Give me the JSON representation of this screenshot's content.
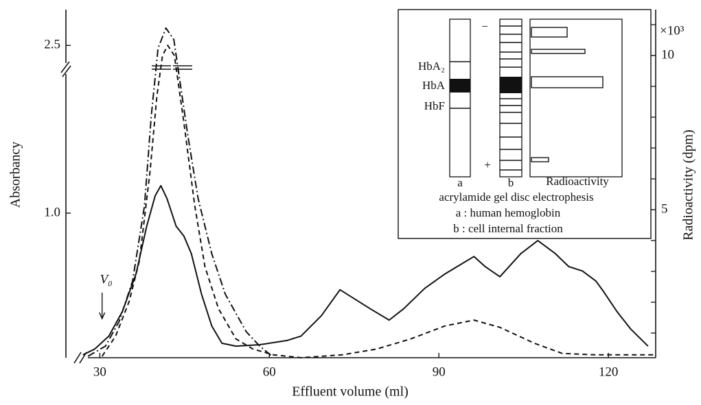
{
  "chart_data": {
    "type": "line",
    "x_label": "Effluent volume (ml)",
    "y_label": "Absorbancy",
    "y2_label": "Radioactivity (dpm)",
    "y2_unit": "×10³",
    "xlim": [
      24,
      128
    ],
    "xticks": [
      30,
      60,
      90,
      120
    ],
    "ylim": [
      0,
      2.75
    ],
    "y_break": [
      2.0,
      2.34
    ],
    "yticks": [
      {
        "value": 1,
        "label": "1.0"
      },
      2.5
    ],
    "y2lim": [
      0.2,
      11.5
    ],
    "y2ticks": [
      5,
      10
    ],
    "y2_minor_ticks": [
      1,
      2,
      3,
      4,
      6,
      7,
      8,
      9,
      11
    ],
    "annotation": {
      "text": "V₀",
      "x": 30.4,
      "y": 0.27
    },
    "series": [
      {
        "style": "solid",
        "color": "#111111",
        "x": [
          27.0,
          29.1,
          31.6,
          34.0,
          36.4,
          38.3,
          39.8,
          40.8,
          41.9,
          43.5,
          44.9,
          46.2,
          48.0,
          49.8,
          51.6,
          54.1,
          58.3,
          63.2,
          65.6,
          69.2,
          72.5,
          77.8,
          81.2,
          83.8,
          87.5,
          91.1,
          96.2,
          98.2,
          100.8,
          104.5,
          107.5,
          110.6,
          113.0,
          115.4,
          117.8,
          119.1,
          121.5,
          123.9,
          127.0
        ],
        "values": [
          0.02,
          0.06,
          0.15,
          0.32,
          0.58,
          0.91,
          1.12,
          1.19,
          1.1,
          0.91,
          0.84,
          0.72,
          0.44,
          0.22,
          0.1,
          0.08,
          0.09,
          0.12,
          0.15,
          0.29,
          0.47,
          0.34,
          0.26,
          0.34,
          0.48,
          0.58,
          0.7,
          0.63,
          0.56,
          0.72,
          0.81,
          0.72,
          0.63,
          0.6,
          0.53,
          0.46,
          0.32,
          0.2,
          0.08
        ]
      },
      {
        "style": "dashed",
        "color": "#111111",
        "x": [
          30.4,
          32.8,
          35.2,
          37.0,
          38.9,
          40.1,
          41.1,
          42.0,
          43.2,
          44.9,
          46.8,
          48.6,
          51.0,
          54.1,
          57.1,
          60.7,
          65.6,
          72.9,
          79.0,
          85.0,
          91.1,
          96.2,
          100.8,
          106.9,
          111.8,
          117.8,
          128.0
        ],
        "values": [
          0.01,
          0.15,
          0.39,
          0.67,
          1.29,
          1.81,
          2.43,
          2.5,
          2.43,
          1.62,
          1.05,
          0.63,
          0.34,
          0.13,
          0.06,
          0.02,
          0.0,
          0.02,
          0.06,
          0.13,
          0.22,
          0.26,
          0.21,
          0.1,
          0.03,
          0.02,
          0.02
        ]
      },
      {
        "style": "dashdot",
        "color": "#111111",
        "x": [
          27.9,
          31.0,
          33.4,
          35.8,
          37.9,
          39.1,
          40.3,
          41.7,
          43.1,
          45.6,
          47.4,
          49.8,
          52.2,
          55.9,
          58.3,
          60.5
        ],
        "values": [
          0.01,
          0.08,
          0.25,
          0.53,
          1.05,
          1.67,
          2.48,
          2.62,
          2.54,
          1.53,
          1.1,
          0.72,
          0.44,
          0.18,
          0.08,
          0.01
        ]
      }
    ]
  },
  "inset": {
    "minus": "−",
    "plus": "+",
    "band_labels": [
      "HbA₂",
      "HbA",
      "HbF"
    ],
    "lane_labels": [
      "a",
      "b",
      "Radioactivity"
    ],
    "radioactivity_bars": [
      50,
      75,
      100,
      24
    ],
    "caption": [
      "acrylamide gel disc electrophesis",
      "a : human hemoglobin",
      "b : cell internal fraction"
    ]
  }
}
